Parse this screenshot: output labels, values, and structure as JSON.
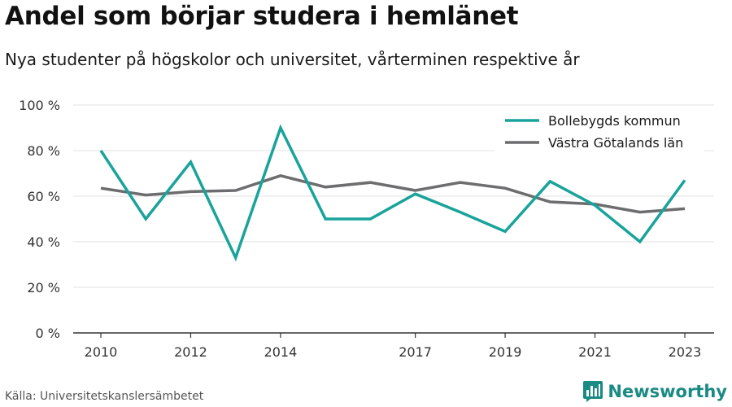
{
  "header": {
    "title": "Andel som börjar studera i hemlänet",
    "subtitle": "Nya studenter på högskolor och universitet, vårterminen respektive år"
  },
  "footer": {
    "source": "Källa: Universitetskanslersämbetet",
    "brand": "Newsworthy",
    "brand_icon": "bar-chart-logo-icon",
    "brand_color": "#1a8a84"
  },
  "chart_data": {
    "type": "line",
    "x": [
      2010,
      2011,
      2012,
      2013,
      2014,
      2015,
      2016,
      2017,
      2018,
      2019,
      2020,
      2021,
      2022,
      2023
    ],
    "x_ticks": [
      2010,
      2012,
      2014,
      2017,
      2019,
      2021,
      2023
    ],
    "y_ticks": [
      0,
      20,
      40,
      60,
      80,
      100
    ],
    "y_tick_labels": [
      "0 %",
      "20 %",
      "40 %",
      "60 %",
      "80 %",
      "100 %"
    ],
    "ylim": [
      0,
      100
    ],
    "grid": true,
    "legend_position": "top-right",
    "series": [
      {
        "name": "Bollebygds kommun",
        "color": "#1aa39b",
        "values": [
          80,
          50,
          75,
          33,
          90,
          50,
          50,
          61,
          53,
          44.5,
          66.5,
          56,
          40,
          67
        ]
      },
      {
        "name": "Västra Götalands län",
        "color": "#6d6d6f",
        "values": [
          63.5,
          60.5,
          62,
          62.5,
          69,
          64,
          66,
          62.5,
          66,
          63.5,
          57.5,
          56.5,
          53,
          54.5
        ]
      }
    ]
  }
}
